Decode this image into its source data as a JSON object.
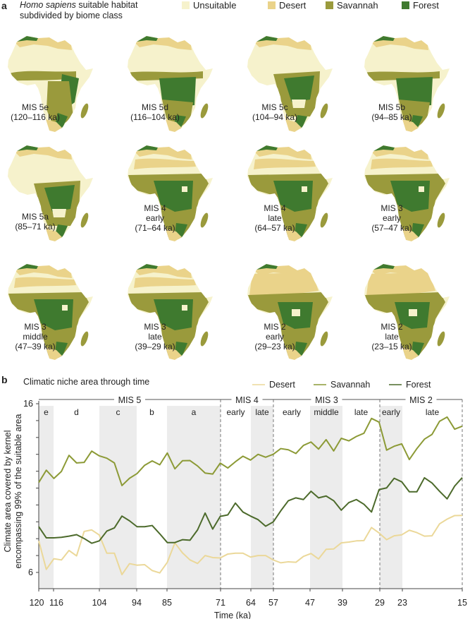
{
  "colors": {
    "unsuitable": "#f6f2cc",
    "desert": "#ead38a",
    "savannah": "#9a9a3c",
    "forest": "#3f7a2f",
    "line_desert": "#ebd899",
    "line_savannah": "#8c9a36",
    "line_forest": "#4c6a2b",
    "band": "#ececec"
  },
  "panel_a": {
    "letter": "a",
    "title_italic": "Homo sapiens",
    "title_rest": " suitable habitat",
    "title_line2": "subdivided by biome class",
    "legend": [
      {
        "label": "Unsuitable",
        "key": "unsuitable"
      },
      {
        "label": "Desert",
        "key": "desert"
      },
      {
        "label": "Savannah",
        "key": "savannah"
      },
      {
        "label": "Forest",
        "key": "forest"
      }
    ],
    "maps": [
      {
        "label": "MIS 5e\n(120–116 ka)",
        "variant": "sparse"
      },
      {
        "label": "MIS 5d\n(116–104 ka)",
        "variant": "forest"
      },
      {
        "label": "MIS 5c\n(104–94 ka)",
        "variant": "mixed"
      },
      {
        "label": "MIS 5b\n(94–85 ka)",
        "variant": "forest"
      },
      {
        "label": "MIS 5a\n(85–71 ka)",
        "variant": "mixed"
      },
      {
        "label": "MIS 4\nearly\n(71–64 ka)",
        "variant": "wide"
      },
      {
        "label": "MIS 4\nlate\n(64–57 ka)",
        "variant": "wide"
      },
      {
        "label": "MIS 3\nearly\n(57–47 ka)",
        "variant": "wide"
      },
      {
        "label": "MIS 3\nmiddle\n(47–39 ka)",
        "variant": "wide"
      },
      {
        "label": "MIS 3\nlate\n(39–29 ka)",
        "variant": "wide"
      },
      {
        "label": "MIS 2\nearly\n(29–23 ka)",
        "variant": "desert"
      },
      {
        "label": "MIS 2\nlate\n(23–15 ka)",
        "variant": "desert"
      }
    ]
  },
  "panel_b": {
    "letter": "b",
    "title": "Climatic niche area through time"
  },
  "chart_data": {
    "type": "line",
    "title": "Climatic niche area through time",
    "xlabel": "Time (ka)",
    "ylabel_line1": "Climate area covered by kernel",
    "ylabel_line2": "encompassing 99% of the suitable area",
    "x_ticks": [
      "120",
      "116",
      "104",
      "94",
      "85",
      "71",
      "64",
      "57",
      "47",
      "39",
      "29",
      "23",
      "15"
    ],
    "x_range_ka": [
      120,
      15
    ],
    "ylim": [
      6,
      16
    ],
    "y_tick_labels": [
      "16",
      "6"
    ],
    "legend_position": "top-right",
    "legend": [
      "Desert",
      "Savannah",
      "Forest"
    ],
    "stages": [
      {
        "label": "MIS 5",
        "from": 120,
        "to": 71
      },
      {
        "label": "MIS 4",
        "from": 71,
        "to": 57
      },
      {
        "label": "MIS 3",
        "from": 57,
        "to": 29
      },
      {
        "label": "MIS 2",
        "from": 29,
        "to": 15
      }
    ],
    "substages": [
      {
        "label": "e",
        "from": 120,
        "to": 116,
        "shaded": true
      },
      {
        "label": "d",
        "from": 116,
        "to": 104,
        "shaded": false
      },
      {
        "label": "c",
        "from": 104,
        "to": 94,
        "shaded": true
      },
      {
        "label": "b",
        "from": 94,
        "to": 85,
        "shaded": false
      },
      {
        "label": "a",
        "from": 85,
        "to": 71,
        "shaded": true
      },
      {
        "label": "early",
        "from": 71,
        "to": 64,
        "shaded": false
      },
      {
        "label": "late",
        "from": 64,
        "to": 57,
        "shaded": true
      },
      {
        "label": "early",
        "from": 57,
        "to": 47,
        "shaded": false
      },
      {
        "label": "middle",
        "from": 47,
        "to": 39,
        "shaded": true
      },
      {
        "label": "late",
        "from": 39,
        "to": 29,
        "shaded": false
      },
      {
        "label": "early",
        "from": 29,
        "to": 23,
        "shaded": true
      },
      {
        "label": "late",
        "from": 23,
        "to": 15,
        "shaded": false
      }
    ],
    "series": [
      {
        "name": "Desert",
        "color_key": "line_desert",
        "values": [
          7.87,
          6.18,
          6.81,
          6.74,
          7.3,
          6.98,
          8.43,
          8.52,
          8.22,
          7.14,
          7.14,
          5.87,
          6.52,
          6.43,
          6.46,
          6.11,
          5.97,
          6.6,
          7.75,
          7.16,
          6.74,
          6.53,
          7.0,
          6.88,
          6.86,
          7.09,
          7.14,
          7.14,
          6.91,
          7.0,
          7.0,
          6.74,
          6.57,
          6.63,
          6.6,
          6.95,
          7.12,
          6.8,
          7.37,
          7.39,
          7.75,
          7.8,
          7.87,
          7.89,
          8.66,
          8.34,
          7.94,
          8.17,
          8.23,
          8.5,
          8.36,
          8.15,
          8.17,
          8.88,
          9.16,
          9.37,
          9.38
        ]
      },
      {
        "name": "Savannah",
        "color_key": "line_savannah",
        "values": [
          11.33,
          12.06,
          11.57,
          11.99,
          12.94,
          12.49,
          12.52,
          13.19,
          12.91,
          12.77,
          12.49,
          11.15,
          11.58,
          11.86,
          12.35,
          12.61,
          12.38,
          13.08,
          12.14,
          12.62,
          12.63,
          12.31,
          11.89,
          11.83,
          12.48,
          12.19,
          12.56,
          12.89,
          12.66,
          13.0,
          12.83,
          13.0,
          13.34,
          13.27,
          13.05,
          13.53,
          13.73,
          13.31,
          13.87,
          13.2,
          13.95,
          13.8,
          14.06,
          14.25,
          15.13,
          14.91,
          13.25,
          13.48,
          13.62,
          12.69,
          13.34,
          13.9,
          14.18,
          14.96,
          15.21,
          14.49,
          14.67
        ]
      },
      {
        "name": "Forest",
        "color_key": "line_forest",
        "values": [
          8.71,
          8.05,
          8.05,
          8.08,
          8.15,
          8.24,
          8.01,
          7.73,
          7.87,
          8.45,
          8.64,
          9.34,
          9.06,
          8.71,
          8.71,
          8.78,
          8.29,
          7.77,
          7.77,
          7.94,
          7.91,
          8.52,
          9.52,
          8.57,
          9.32,
          9.41,
          10.11,
          9.58,
          9.34,
          9.13,
          8.74,
          8.99,
          9.65,
          10.25,
          10.42,
          10.32,
          10.81,
          10.42,
          10.53,
          10.25,
          9.69,
          10.14,
          10.32,
          10.04,
          9.58,
          10.91,
          11.01,
          11.58,
          11.37,
          10.78,
          10.78,
          11.61,
          11.3,
          10.81,
          10.36,
          11.12,
          11.62
        ]
      }
    ]
  }
}
